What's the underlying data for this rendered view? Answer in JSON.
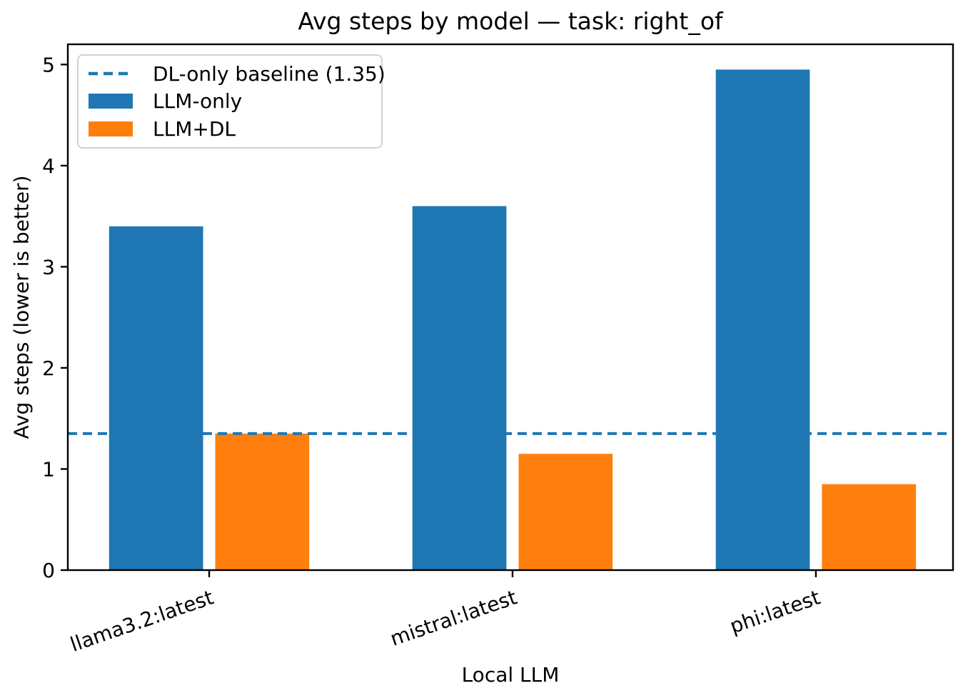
{
  "chart_data": {
    "type": "bar",
    "title": "Avg steps by model — task: right_of",
    "xlabel": "Local LLM",
    "ylabel": "Avg steps (lower is better)",
    "categories": [
      "llama3.2:latest",
      "mistral:latest",
      "phi:latest"
    ],
    "series": [
      {
        "name": "LLM-only",
        "color": "#1f77b4",
        "values": [
          3.4,
          3.6,
          4.95
        ]
      },
      {
        "name": "LLM+DL",
        "color": "#ff7f0e",
        "values": [
          1.35,
          1.15,
          0.85
        ]
      }
    ],
    "baseline": {
      "label": "DL-only baseline (1.35)",
      "value": 1.35,
      "color": "#1f77b4",
      "style": "dashed"
    },
    "ylim": [
      0,
      5.2
    ],
    "yticks": [
      "0",
      "1",
      "2",
      "3",
      "4",
      "5"
    ],
    "xtick_rotation_deg": 19,
    "grid": false,
    "legend": {
      "position": "upper left",
      "entries": [
        "DL-only baseline (1.35)",
        "LLM-only",
        "LLM+DL"
      ]
    },
    "axis_color": "#000000",
    "background_color": "#ffffff"
  }
}
